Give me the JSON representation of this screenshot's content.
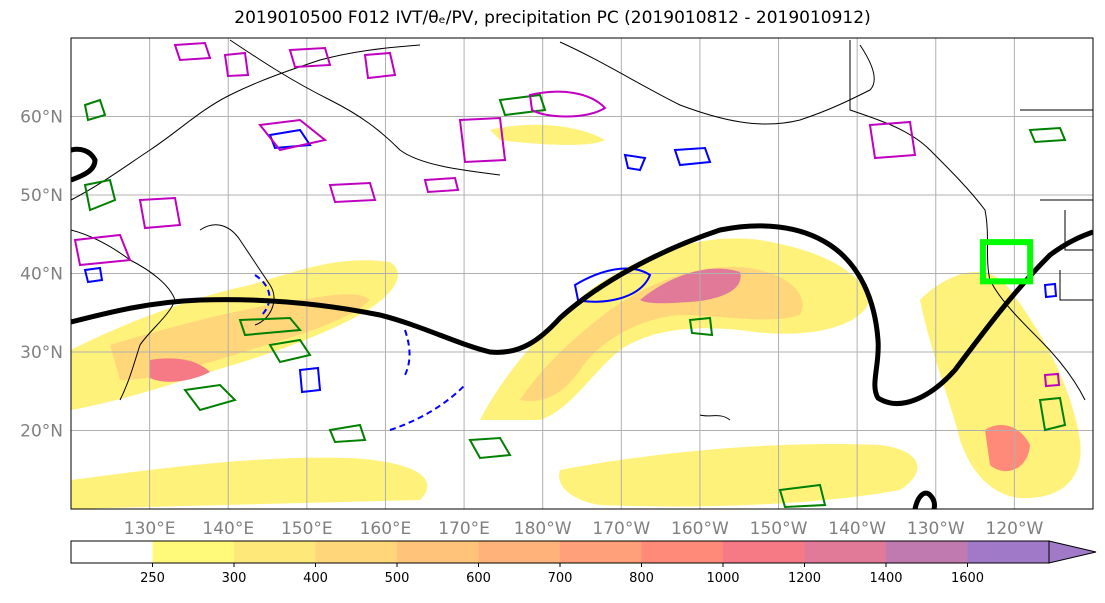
{
  "title": "2019010500 F012 IVT/θₑ/PV, precipitation PC (2019010812 - 2019010912)",
  "map": {
    "lon_range": [
      120,
      250
    ],
    "lat_range": [
      10,
      70
    ],
    "lat_labels": [
      "60°N",
      "50°N",
      "40°N",
      "30°N",
      "20°N"
    ],
    "lat_ticks": [
      60,
      50,
      40,
      30,
      20
    ],
    "lon_labels": [
      "130°E",
      "140°E",
      "150°E",
      "160°E",
      "170°E",
      "180°W",
      "170°W",
      "160°W",
      "150°W",
      "140°W",
      "130°W",
      "120°W"
    ],
    "lon_ticks": [
      130,
      140,
      150,
      160,
      170,
      180,
      190,
      200,
      210,
      220,
      230,
      240
    ],
    "target_box": {
      "lon": [
        236,
        242
      ],
      "lat": [
        39,
        44
      ],
      "color": "#00ff00"
    },
    "theta_e_contour_color": "#000000",
    "pv_colors": {
      "positive": "#008000",
      "negative": "#0000ff",
      "other": "#c000c0"
    }
  },
  "colorbar": {
    "levels": [
      "250",
      "300",
      "400",
      "500",
      "600",
      "700",
      "800",
      "1000",
      "1200",
      "1400",
      "1600"
    ],
    "colors": [
      "#ffffff",
      "#fffa7a",
      "#ffe87a",
      "#ffd67a",
      "#ffc47a",
      "#ffb27a",
      "#ffa07a",
      "#ff8a7a",
      "#f57a86",
      "#e07a98",
      "#c07ab0",
      "#a07ac8"
    ]
  }
}
